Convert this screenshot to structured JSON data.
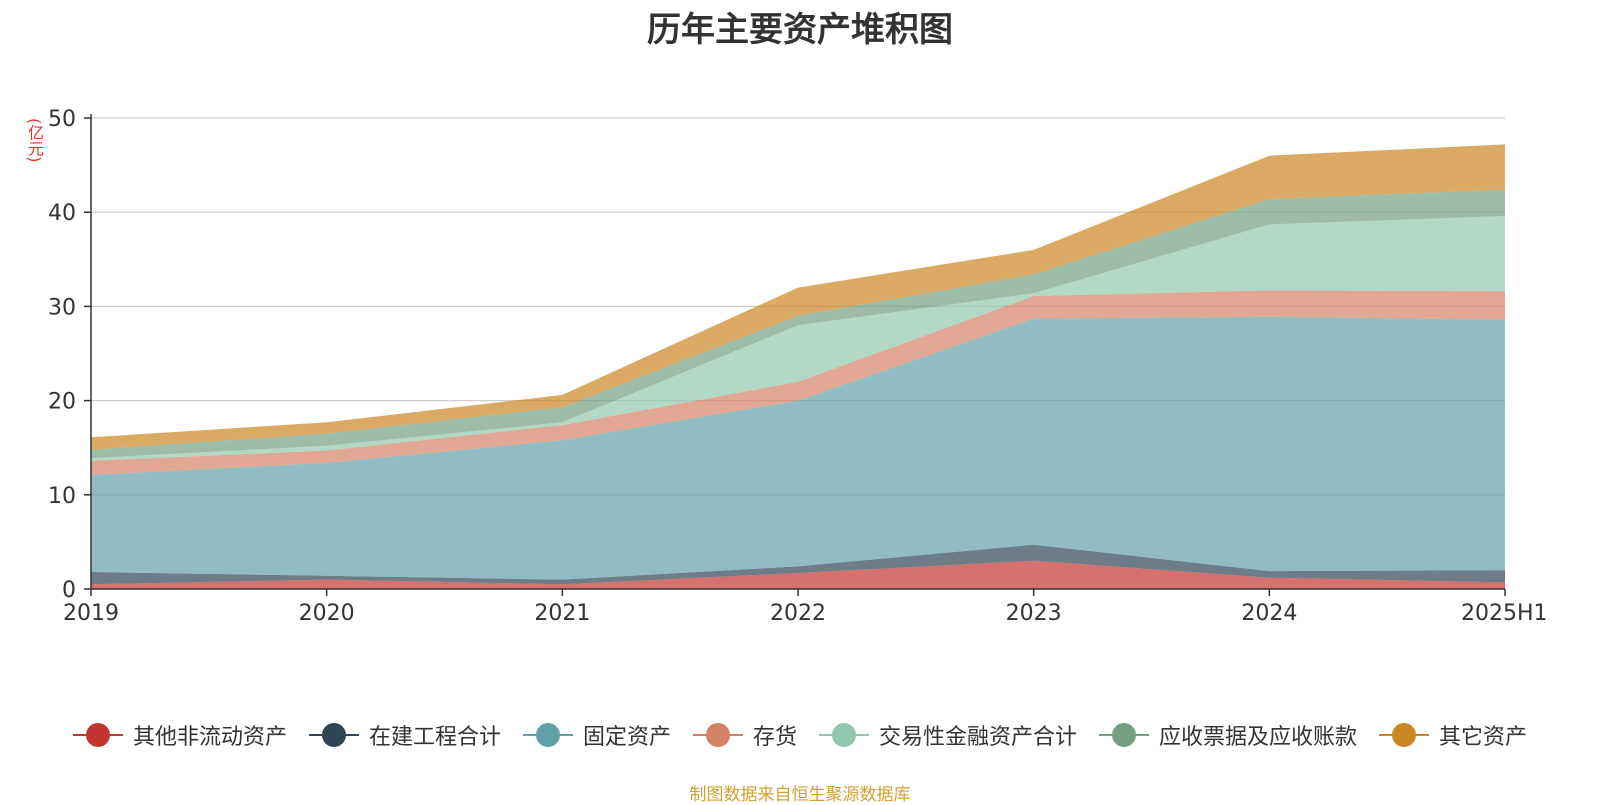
{
  "chart_data": {
    "type": "area",
    "stacked": true,
    "title": "历年主要资产堆积图",
    "unit_label": "(亿元)",
    "x": [
      "2019",
      "2020",
      "2021",
      "2022",
      "2023",
      "2024",
      "2025H1"
    ],
    "ylim": [
      0,
      50
    ],
    "yticks": [
      "0",
      "10",
      "20",
      "30",
      "40",
      "50"
    ],
    "grid": true,
    "legend_position": "bottom",
    "series": [
      {
        "name": "其他非流动资产",
        "color": "#c23531",
        "values": [
          0.5,
          1.0,
          0.5,
          1.7,
          3.0,
          1.2,
          0.7
        ]
      },
      {
        "name": "在建工程合计",
        "color": "#2f4554",
        "values": [
          1.3,
          0.4,
          0.5,
          0.7,
          1.7,
          0.7,
          1.3
        ]
      },
      {
        "name": "固定资产",
        "color": "#61a0a8",
        "values": [
          10.3,
          12.0,
          14.8,
          17.6,
          24.0,
          27.0,
          26.6
        ]
      },
      {
        "name": "存货",
        "color": "#d48265",
        "values": [
          1.5,
          1.3,
          1.6,
          2.0,
          2.4,
          2.8,
          3.0
        ]
      },
      {
        "name": "交易性金融资产合计",
        "color": "#91c7ae",
        "values": [
          0.3,
          0.5,
          0.3,
          6.0,
          0.3,
          7.0,
          8.0
        ]
      },
      {
        "name": "应收票据及应收账款",
        "color": "#749f83",
        "values": [
          0.9,
          1.3,
          1.6,
          1.0,
          2.0,
          2.7,
          2.8
        ]
      },
      {
        "name": "其它资产",
        "color": "#ca8622",
        "values": [
          1.3,
          1.2,
          1.3,
          3.0,
          2.6,
          4.6,
          4.8
        ]
      }
    ],
    "source_note": "制图数据来自恒生聚源数据库"
  }
}
